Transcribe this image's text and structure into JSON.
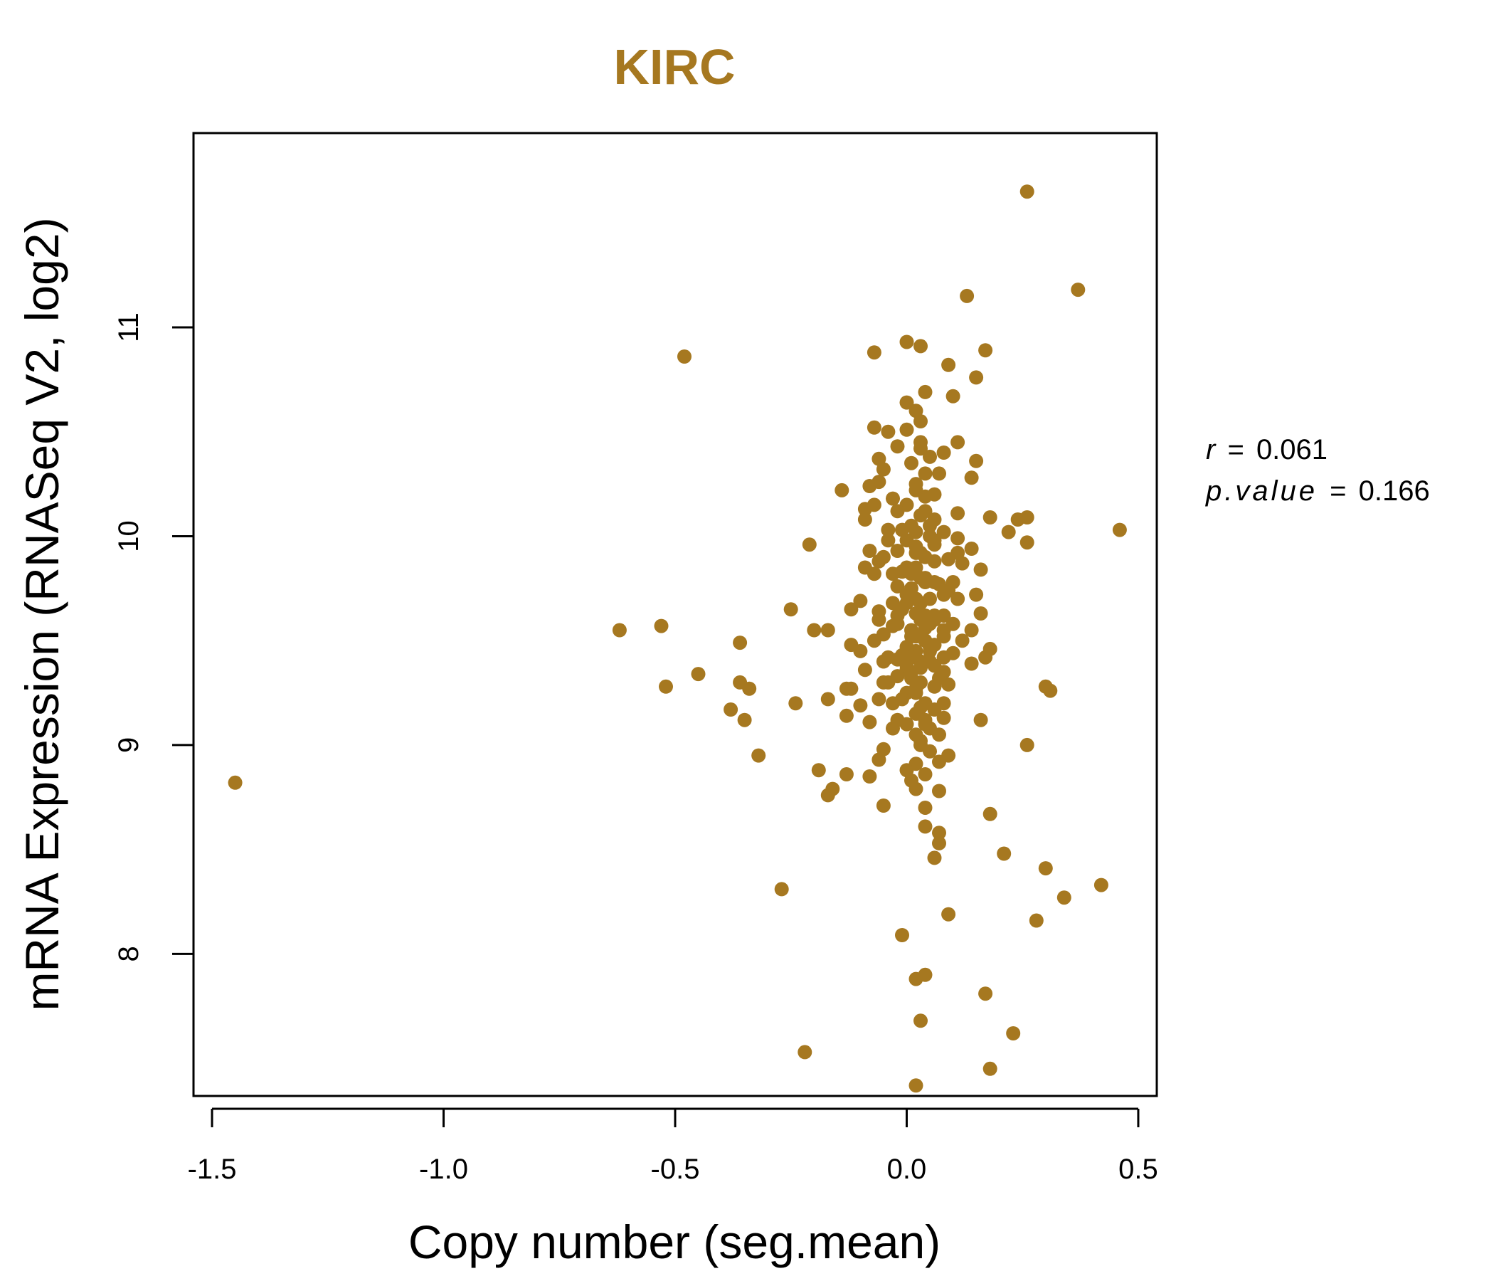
{
  "colors": {
    "accent": "#a67820",
    "axis": "#000000",
    "background": "#ffffff"
  },
  "chart_data": {
    "type": "scatter",
    "title": "KIRC",
    "xlabel": "Copy number (seg.mean)",
    "ylabel": "mRNA Expression (RNASeq V2, log2)",
    "xlim": [
      -1.54,
      0.54
    ],
    "ylim": [
      7.32,
      11.93
    ],
    "xticks": [
      -1.5,
      -1.0,
      -0.5,
      0.0,
      0.5
    ],
    "xtick_labels": [
      "-1.5",
      "-1.0",
      "-0.5",
      "0.0",
      "0.5"
    ],
    "yticks": [
      8,
      9,
      10,
      11
    ],
    "ytick_labels": [
      "8",
      "9",
      "10",
      "11"
    ],
    "grid": false,
    "stats": {
      "r_label": "r",
      "r_value": "0.061",
      "p_label": "p.value",
      "p_value": "0.166"
    },
    "points": [
      [
        0.26,
        11.65
      ],
      [
        0.37,
        11.18
      ],
      [
        0.13,
        11.15
      ],
      [
        0.0,
        10.93
      ],
      [
        0.03,
        10.91
      ],
      [
        0.17,
        10.89
      ],
      [
        -0.07,
        10.88
      ],
      [
        -0.48,
        10.86
      ],
      [
        0.09,
        10.82
      ],
      [
        0.15,
        10.76
      ],
      [
        0.04,
        10.69
      ],
      [
        0.1,
        10.67
      ],
      [
        0.0,
        10.64
      ],
      [
        0.02,
        10.6
      ],
      [
        0.03,
        10.55
      ],
      [
        0.0,
        10.51
      ],
      [
        -0.07,
        10.52
      ],
      [
        -0.04,
        10.5
      ],
      [
        0.11,
        10.45
      ],
      [
        -0.02,
        10.43
      ],
      [
        0.03,
        10.42
      ],
      [
        0.08,
        10.4
      ],
      [
        -0.06,
        10.37
      ],
      [
        0.15,
        10.36
      ],
      [
        0.05,
        10.38
      ],
      [
        -0.05,
        10.32
      ],
      [
        0.07,
        10.3
      ],
      [
        0.14,
        10.28
      ],
      [
        -0.06,
        10.26
      ],
      [
        -0.08,
        10.24
      ],
      [
        0.02,
        10.22
      ],
      [
        -0.14,
        10.22
      ],
      [
        -0.03,
        10.18
      ],
      [
        0.04,
        10.19
      ],
      [
        -0.07,
        10.15
      ],
      [
        0.11,
        10.11
      ],
      [
        -0.09,
        10.13
      ],
      [
        0.18,
        10.09
      ],
      [
        0.26,
        10.09
      ],
      [
        0.24,
        10.08
      ],
      [
        -0.09,
        10.08
      ],
      [
        0.05,
        10.05
      ],
      [
        0.22,
        10.02
      ],
      [
        -0.04,
        10.03
      ],
      [
        0.46,
        10.03
      ],
      [
        0.11,
        9.99
      ],
      [
        0.26,
        9.97
      ],
      [
        -0.21,
        9.96
      ],
      [
        0.06,
        9.96
      ],
      [
        0.14,
        9.94
      ],
      [
        -0.08,
        9.93
      ],
      [
        0.02,
        9.92
      ],
      [
        0.09,
        9.89
      ],
      [
        -0.06,
        9.88
      ],
      [
        0.12,
        9.87
      ],
      [
        -0.09,
        9.85
      ],
      [
        0.16,
        9.84
      ],
      [
        -0.07,
        9.82
      ],
      [
        0.04,
        9.8
      ],
      [
        0.07,
        9.77
      ],
      [
        -0.02,
        9.76
      ],
      [
        0.09,
        9.74
      ],
      [
        0.15,
        9.72
      ],
      [
        0.11,
        9.7
      ],
      [
        -0.1,
        9.69
      ],
      [
        0.0,
        9.68
      ],
      [
        -0.25,
        9.65
      ],
      [
        -0.12,
        9.65
      ],
      [
        -0.06,
        9.64
      ],
      [
        0.16,
        9.63
      ],
      [
        -0.02,
        9.62
      ],
      [
        0.06,
        9.6
      ],
      [
        -0.53,
        9.57
      ],
      [
        -0.62,
        9.55
      ],
      [
        -0.2,
        9.55
      ],
      [
        -0.17,
        9.55
      ],
      [
        0.08,
        9.55
      ],
      [
        0.14,
        9.55
      ],
      [
        -0.05,
        9.53
      ],
      [
        0.02,
        9.52
      ],
      [
        -0.36,
        9.49
      ],
      [
        -0.12,
        9.48
      ],
      [
        0.05,
        9.47
      ],
      [
        0.18,
        9.46
      ],
      [
        -0.1,
        9.45
      ],
      [
        0.1,
        9.44
      ],
      [
        0.17,
        9.42
      ],
      [
        -0.02,
        9.41
      ],
      [
        0.03,
        9.4
      ],
      [
        0.14,
        9.39
      ],
      [
        -0.09,
        9.36
      ],
      [
        0.0,
        9.36
      ],
      [
        -0.45,
        9.34
      ],
      [
        0.07,
        9.32
      ],
      [
        -0.36,
        9.3
      ],
      [
        -0.05,
        9.3
      ],
      [
        0.09,
        9.29
      ],
      [
        0.3,
        9.28
      ],
      [
        -0.52,
        9.28
      ],
      [
        -0.34,
        9.27
      ],
      [
        0.31,
        9.26
      ],
      [
        -0.13,
        9.27
      ],
      [
        -0.12,
        9.27
      ],
      [
        0.02,
        9.25
      ],
      [
        -0.06,
        9.22
      ],
      [
        -0.17,
        9.22
      ],
      [
        -0.24,
        9.2
      ],
      [
        -0.1,
        9.19
      ],
      [
        0.03,
        9.18
      ],
      [
        -0.38,
        9.17
      ],
      [
        -0.13,
        9.14
      ],
      [
        0.08,
        9.13
      ],
      [
        0.16,
        9.12
      ],
      [
        -0.35,
        9.12
      ],
      [
        -0.08,
        9.11
      ],
      [
        0.04,
        9.1
      ],
      [
        -0.03,
        9.08
      ],
      [
        0.07,
        9.05
      ],
      [
        0.03,
        9.02
      ],
      [
        0.26,
        9.0
      ],
      [
        -0.05,
        8.98
      ],
      [
        0.05,
        8.97
      ],
      [
        -0.32,
        8.95
      ],
      [
        0.09,
        8.95
      ],
      [
        0.07,
        8.92
      ],
      [
        -0.06,
        8.93
      ],
      [
        0.02,
        8.91
      ],
      [
        -0.19,
        8.88
      ],
      [
        0.0,
        8.88
      ],
      [
        0.04,
        8.86
      ],
      [
        -0.13,
        8.86
      ],
      [
        -0.08,
        8.85
      ],
      [
        0.01,
        8.83
      ],
      [
        -0.16,
        8.79
      ],
      [
        -0.17,
        8.76
      ],
      [
        0.07,
        8.78
      ],
      [
        0.02,
        8.79
      ],
      [
        -0.05,
        8.71
      ],
      [
        0.04,
        8.7
      ],
      [
        0.18,
        8.67
      ],
      [
        0.04,
        8.61
      ],
      [
        0.07,
        8.58
      ],
      [
        0.07,
        8.53
      ],
      [
        0.21,
        8.48
      ],
      [
        0.06,
        8.46
      ],
      [
        0.3,
        8.41
      ],
      [
        -0.27,
        8.31
      ],
      [
        0.42,
        8.33
      ],
      [
        0.34,
        8.27
      ],
      [
        0.09,
        8.19
      ],
      [
        0.28,
        8.16
      ],
      [
        -0.01,
        8.09
      ],
      [
        0.04,
        7.9
      ],
      [
        0.02,
        7.88
      ],
      [
        0.17,
        7.81
      ],
      [
        0.03,
        7.68
      ],
      [
        0.23,
        7.62
      ],
      [
        -0.22,
        7.53
      ],
      [
        0.18,
        7.45
      ],
      [
        0.02,
        7.37
      ],
      [
        -1.45,
        8.82
      ],
      [
        0.03,
        9.6
      ],
      [
        0.01,
        9.55
      ],
      [
        0.04,
        9.5
      ],
      [
        0.02,
        9.45
      ],
      [
        0.05,
        9.4
      ],
      [
        0.01,
        9.35
      ],
      [
        0.03,
        9.3
      ],
      [
        0.0,
        9.25
      ],
      [
        0.04,
        9.2
      ],
      [
        0.02,
        9.15
      ],
      [
        0.05,
        9.7
      ],
      [
        0.01,
        9.75
      ],
      [
        0.03,
        9.8
      ],
      [
        0.0,
        9.85
      ],
      [
        0.04,
        9.9
      ],
      [
        0.02,
        9.95
      ],
      [
        0.05,
        10.0
      ],
      [
        0.01,
        10.05
      ],
      [
        0.03,
        10.1
      ],
      [
        0.0,
        10.15
      ],
      [
        -0.01,
        9.65
      ],
      [
        0.06,
        9.62
      ],
      [
        -0.02,
        9.58
      ],
      [
        0.06,
        9.48
      ],
      [
        -0.01,
        9.43
      ],
      [
        0.06,
        9.38
      ],
      [
        -0.02,
        9.33
      ],
      [
        0.06,
        9.28
      ],
      [
        -0.01,
        9.22
      ],
      [
        0.06,
        9.17
      ],
      [
        -0.02,
        9.12
      ],
      [
        0.06,
        9.78
      ],
      [
        -0.01,
        9.83
      ],
      [
        0.06,
        9.88
      ],
      [
        -0.02,
        9.93
      ],
      [
        0.06,
        9.98
      ],
      [
        -0.01,
        10.03
      ],
      [
        0.06,
        10.08
      ],
      [
        -0.02,
        10.12
      ],
      [
        0.06,
        10.2
      ],
      [
        0.02,
        9.05
      ],
      [
        0.03,
        9.0
      ],
      [
        0.0,
        9.72
      ],
      [
        0.03,
        9.68
      ],
      [
        0.01,
        9.52
      ],
      [
        0.04,
        9.56
      ],
      [
        0.0,
        9.47
      ],
      [
        0.02,
        9.63
      ],
      [
        0.05,
        9.58
      ],
      [
        0.01,
        9.82
      ],
      [
        0.03,
        9.92
      ],
      [
        0.02,
        10.02
      ],
      [
        0.04,
        10.12
      ],
      [
        0.01,
        9.32
      ],
      [
        0.03,
        9.37
      ],
      [
        0.02,
        9.27
      ],
      [
        0.04,
        9.12
      ],
      [
        0.0,
        9.1
      ],
      [
        0.05,
        9.08
      ],
      [
        0.02,
        10.25
      ],
      [
        0.04,
        10.3
      ],
      [
        0.01,
        10.35
      ],
      [
        0.03,
        10.45
      ],
      [
        -0.03,
        9.57
      ],
      [
        0.08,
        9.52
      ],
      [
        -0.03,
        9.68
      ],
      [
        0.08,
        9.72
      ],
      [
        -0.03,
        9.82
      ],
      [
        0.08,
        9.62
      ],
      [
        -0.04,
        9.42
      ],
      [
        0.08,
        9.42
      ],
      [
        -0.04,
        9.98
      ],
      [
        0.08,
        10.02
      ],
      [
        -0.03,
        9.2
      ],
      [
        0.08,
        9.2
      ],
      [
        -0.04,
        9.3
      ],
      [
        0.08,
        9.35
      ],
      [
        0.1,
        9.58
      ],
      [
        -0.06,
        9.6
      ],
      [
        0.1,
        9.78
      ],
      [
        -0.05,
        9.9
      ],
      [
        0.11,
        9.92
      ],
      [
        -0.05,
        9.4
      ],
      [
        0.12,
        9.5
      ],
      [
        -0.07,
        9.5
      ],
      [
        0.0,
        9.98
      ],
      [
        0.02,
        9.7
      ],
      [
        0.04,
        9.62
      ],
      [
        0.01,
        9.42
      ],
      [
        0.03,
        9.52
      ],
      [
        0.0,
        9.38
      ],
      [
        0.05,
        9.45
      ],
      [
        0.02,
        9.85
      ],
      [
        0.04,
        9.78
      ]
    ]
  }
}
